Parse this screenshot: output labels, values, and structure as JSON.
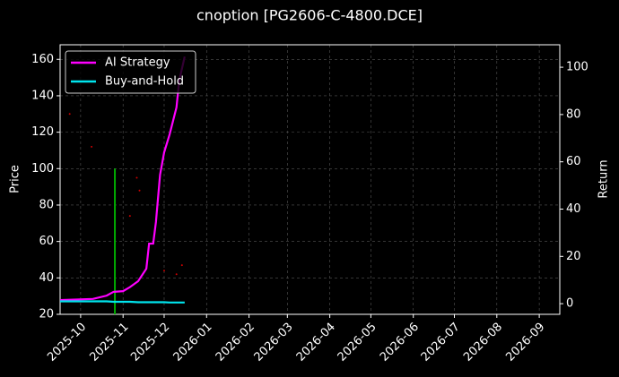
{
  "chart_data": {
    "type": "line",
    "title": "cnoption [PG2606-C-4800.DCE]",
    "y_label": "Price",
    "y2_label": "Return",
    "xlim": [
      "2025-09-16",
      "2026-09-16"
    ],
    "xticks": [
      "2025-10",
      "2025-11",
      "2025-12",
      "2026-01",
      "2026-02",
      "2026-03",
      "2026-04",
      "2026-05",
      "2026-06",
      "2026-07",
      "2026-08",
      "2026-09"
    ],
    "ylim": [
      20,
      168
    ],
    "yticks": [
      20,
      40,
      60,
      80,
      100,
      120,
      140,
      160
    ],
    "y2lim": [
      -4.5,
      109.5
    ],
    "y2ticks": [
      0,
      20,
      40,
      60,
      80,
      100
    ],
    "grid": true,
    "legend": "upper-left",
    "x": [
      "2025-09-16",
      "2025-10-10",
      "2025-10-20",
      "2025-10-25",
      "2025-11-01",
      "2025-11-06",
      "2025-11-12",
      "2025-11-18",
      "2025-11-20",
      "2025-11-23",
      "2025-11-25",
      "2025-11-28",
      "2025-12-01",
      "2025-12-05",
      "2025-12-10",
      "2025-12-12",
      "2025-12-16"
    ],
    "series": [
      {
        "name": "AI Strategy",
        "color": "#ff00ff",
        "axis": "y2",
        "values": [
          1.5,
          2,
          3.4,
          5,
          5.3,
          7,
          9.5,
          14.8,
          25.4,
          25.4,
          34.5,
          54.5,
          64,
          71.6,
          83,
          94.3,
          104.5
        ]
      },
      {
        "name": "Buy-and-Hold",
        "color": "#00e5ee",
        "axis": "y2",
        "values": [
          1,
          1,
          1,
          0.8,
          0.8,
          0.8,
          0.6,
          0.6,
          0.6,
          0.6,
          0.6,
          0.6,
          0.6,
          0.5,
          0.5,
          0.5,
          0.5
        ]
      }
    ],
    "points": {
      "color": "#cc0000",
      "x": [
        "2025-09-23",
        "2025-10-09",
        "2025-11-06",
        "2025-11-11",
        "2025-11-13",
        "2025-12-01",
        "2025-12-10",
        "2025-12-14"
      ],
      "values": [
        130,
        112,
        74,
        95,
        88,
        44,
        42,
        47
      ]
    },
    "marker": {
      "color": "#00aa00",
      "x": "2025-10-26",
      "low": 20,
      "high": 100
    }
  }
}
